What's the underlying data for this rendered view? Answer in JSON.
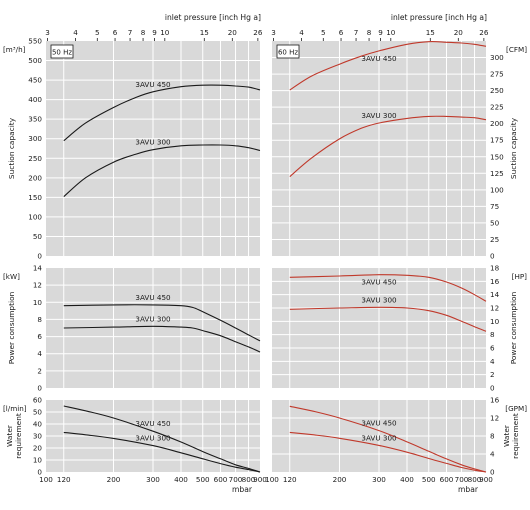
{
  "colors": {
    "panel_bg": "#d9d9d9",
    "grid": "#ffffff",
    "curve_50hz": "#1a1a1a",
    "curve_60hz": "#c0392b",
    "tick_text": "#1a1a1a"
  },
  "top_axis": {
    "label": "inlet pressure [inch Hg a]",
    "ticks": [
      3,
      4,
      5,
      6,
      7,
      8,
      9,
      10,
      15,
      20,
      26
    ],
    "mbar_per_inHg": 33.8639
  },
  "bottom_axis": {
    "unit": "mbar",
    "ticks": [
      100,
      120,
      200,
      300,
      400,
      500,
      600,
      700,
      800,
      900
    ],
    "range": [
      100,
      900
    ],
    "scale": "log"
  },
  "row_titles": {
    "suction": "Suction capacity",
    "power": "Power consumption",
    "water": "Water requirement"
  },
  "chart_data": [
    {
      "type": "line",
      "panel": "suction-50hz",
      "frequency_label": "50 Hz",
      "ylabel": "[m³/h]",
      "ylim": [
        0,
        550
      ],
      "yticks": [
        0,
        50,
        100,
        150,
        200,
        250,
        300,
        350,
        400,
        450,
        500,
        550
      ],
      "series": [
        {
          "name": "3AVU 450",
          "x": [
            120,
            150,
            200,
            250,
            300,
            400,
            500,
            600,
            700,
            800,
            900
          ],
          "y": [
            295,
            340,
            380,
            405,
            420,
            433,
            437,
            437,
            435,
            432,
            425
          ]
        },
        {
          "name": "3AVU 300",
          "x": [
            120,
            150,
            200,
            250,
            300,
            400,
            500,
            600,
            700,
            800,
            900
          ],
          "y": [
            152,
            200,
            240,
            260,
            272,
            282,
            284,
            284,
            282,
            277,
            270
          ]
        }
      ]
    },
    {
      "type": "line",
      "panel": "suction-60hz",
      "frequency_label": "60 Hz",
      "ylabel": "[CFM]",
      "ylim": [
        0,
        325
      ],
      "yticks": [
        0,
        25,
        50,
        75,
        100,
        125,
        150,
        175,
        200,
        225,
        250,
        275,
        300
      ],
      "series": [
        {
          "name": "3AVU 450",
          "x": [
            120,
            150,
            200,
            250,
            300,
            400,
            500,
            600,
            700,
            800,
            900
          ],
          "y": [
            251,
            272,
            290,
            302,
            310,
            320,
            324,
            323,
            322,
            320,
            317
          ]
        },
        {
          "name": "3AVU 300",
          "x": [
            120,
            150,
            200,
            250,
            300,
            400,
            500,
            600,
            700,
            800,
            900
          ],
          "y": [
            120,
            148,
            177,
            193,
            201,
            208,
            211,
            211,
            210,
            209,
            206
          ]
        }
      ]
    },
    {
      "type": "line",
      "panel": "power-50hz",
      "ylabel": "[kW]",
      "ylim": [
        0,
        14
      ],
      "yticks": [
        0,
        2,
        4,
        6,
        8,
        10,
        12,
        14
      ],
      "series": [
        {
          "name": "3AVU 450",
          "x": [
            120,
            200,
            300,
            400,
            450,
            500,
            600,
            700,
            800,
            900
          ],
          "y": [
            9.6,
            9.7,
            9.7,
            9.6,
            9.4,
            8.9,
            7.9,
            7.0,
            6.2,
            5.5
          ]
        },
        {
          "name": "3AVU 300",
          "x": [
            120,
            200,
            300,
            400,
            450,
            500,
            600,
            700,
            800,
            900
          ],
          "y": [
            7.0,
            7.1,
            7.2,
            7.1,
            7.0,
            6.7,
            6.1,
            5.4,
            4.8,
            4.2
          ]
        }
      ]
    },
    {
      "type": "line",
      "panel": "power-60hz",
      "ylabel": "[HP]",
      "ylim": [
        0,
        18
      ],
      "yticks": [
        0,
        2,
        4,
        6,
        8,
        10,
        12,
        14,
        16,
        18
      ],
      "series": [
        {
          "name": "3AVU 450",
          "x": [
            120,
            200,
            300,
            400,
            500,
            600,
            700,
            800,
            900
          ],
          "y": [
            16.6,
            16.8,
            17.0,
            16.9,
            16.6,
            15.9,
            15.0,
            14.0,
            13.0
          ]
        },
        {
          "name": "3AVU 300",
          "x": [
            120,
            200,
            300,
            400,
            500,
            600,
            700,
            800,
            900
          ],
          "y": [
            11.8,
            12.0,
            12.1,
            12.0,
            11.6,
            10.9,
            10.0,
            9.2,
            8.5
          ]
        }
      ]
    },
    {
      "type": "line",
      "panel": "water-50hz",
      "ylabel": "[l/min]",
      "ylim": [
        0,
        60
      ],
      "yticks": [
        0,
        10,
        20,
        30,
        40,
        50,
        60
      ],
      "series": [
        {
          "name": "3AVU 450",
          "x": [
            120,
            150,
            200,
            300,
            400,
            500,
            600,
            700,
            800,
            900
          ],
          "y": [
            55,
            51,
            45,
            34,
            25,
            17,
            11,
            6,
            3,
            0
          ]
        },
        {
          "name": "3AVU 300",
          "x": [
            120,
            150,
            200,
            300,
            400,
            500,
            600,
            700,
            800,
            900
          ],
          "y": [
            33,
            31,
            28,
            22,
            16,
            11,
            7,
            4,
            2,
            0
          ]
        }
      ]
    },
    {
      "type": "line",
      "panel": "water-60hz",
      "ylabel": "[GPM]",
      "ylim": [
        0,
        16
      ],
      "yticks": [
        0,
        4,
        8,
        12,
        16
      ],
      "series": [
        {
          "name": "3AVU 450",
          "x": [
            120,
            150,
            200,
            300,
            400,
            500,
            600,
            700,
            800,
            900
          ],
          "y": [
            14.6,
            13.6,
            12.0,
            9.2,
            6.7,
            4.6,
            2.9,
            1.6,
            0.7,
            0
          ]
        },
        {
          "name": "3AVU 300",
          "x": [
            120,
            150,
            200,
            300,
            400,
            500,
            600,
            700,
            800,
            900
          ],
          "y": [
            8.8,
            8.3,
            7.5,
            5.9,
            4.4,
            3.0,
            1.9,
            1.0,
            0.4,
            0
          ]
        }
      ]
    }
  ]
}
